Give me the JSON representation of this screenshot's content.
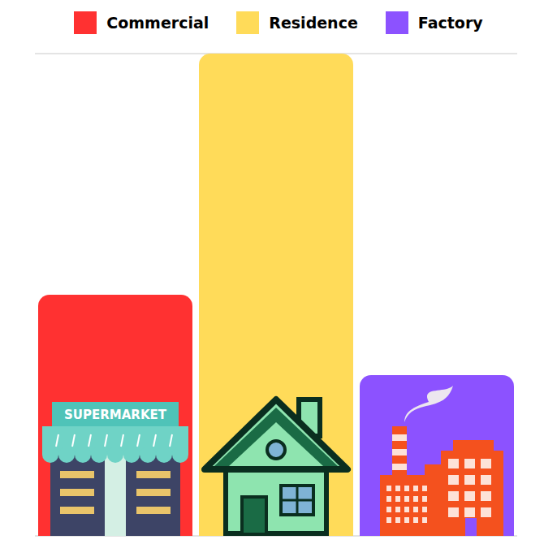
{
  "chart_data": {
    "type": "bar",
    "categories": [
      "Commercial",
      "Residence",
      "Factory"
    ],
    "values": [
      3,
      6,
      2
    ],
    "colors": [
      "#ff3131",
      "#ffdb59",
      "#8c52ff"
    ],
    "ylim": [
      0,
      6
    ],
    "yticks": [
      0,
      1,
      2,
      3,
      4,
      5,
      6
    ],
    "grid": true,
    "legend": "top",
    "tick_labels": false,
    "annotations": [
      "SUPERMARKET"
    ]
  }
}
